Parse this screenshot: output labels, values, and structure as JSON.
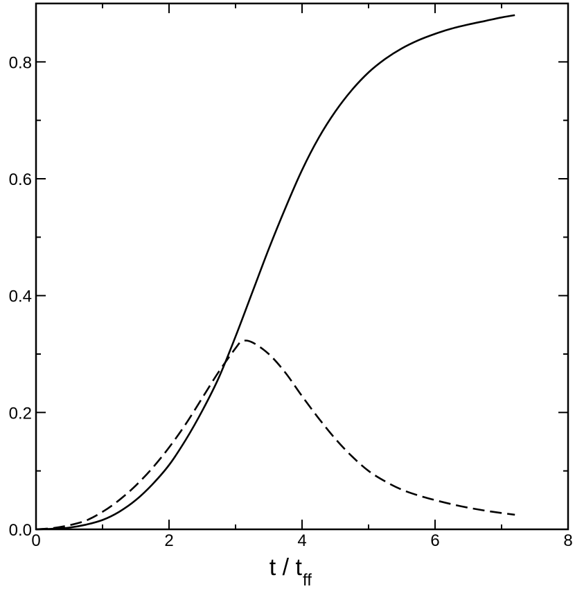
{
  "chart_data": {
    "type": "line",
    "title": "",
    "xlabel": "t / t",
    "xlabel_subscript": "ff",
    "ylabel": "",
    "xlim": [
      0,
      8
    ],
    "ylim": [
      0,
      0.9
    ],
    "x_ticks": [
      "0",
      "2",
      "4",
      "6",
      "8"
    ],
    "y_ticks": [
      "0.0",
      "0.2",
      "0.4",
      "0.6",
      "0.8"
    ],
    "grid": false,
    "legend": "none",
    "series": [
      {
        "style": "solid",
        "color": "#000000",
        "x": [
          0,
          0.25,
          0.5,
          0.75,
          1.0,
          1.25,
          1.5,
          1.75,
          2.0,
          2.25,
          2.5,
          2.75,
          3.0,
          3.25,
          3.5,
          3.75,
          4.0,
          4.25,
          4.5,
          4.75,
          5.0,
          5.25,
          5.5,
          5.75,
          6.0,
          6.25,
          6.5,
          6.75,
          7.0,
          7.2
        ],
        "y": [
          0.0,
          0.001,
          0.003,
          0.008,
          0.016,
          0.03,
          0.05,
          0.077,
          0.11,
          0.153,
          0.203,
          0.26,
          0.33,
          0.405,
          0.48,
          0.55,
          0.615,
          0.67,
          0.715,
          0.752,
          0.782,
          0.805,
          0.823,
          0.837,
          0.848,
          0.857,
          0.864,
          0.87,
          0.876,
          0.88
        ]
      },
      {
        "style": "dashed",
        "color": "#000000",
        "x": [
          0,
          0.25,
          0.5,
          0.75,
          1.0,
          1.25,
          1.5,
          1.75,
          2.0,
          2.25,
          2.5,
          2.75,
          3.0,
          3.1,
          3.25,
          3.5,
          3.75,
          4.0,
          4.25,
          4.5,
          4.75,
          5.0,
          5.25,
          5.5,
          5.75,
          6.0,
          6.25,
          6.5,
          6.75,
          7.0,
          7.2
        ],
        "y": [
          0.0,
          0.002,
          0.007,
          0.015,
          0.03,
          0.05,
          0.075,
          0.105,
          0.14,
          0.18,
          0.225,
          0.27,
          0.31,
          0.322,
          0.32,
          0.3,
          0.268,
          0.228,
          0.19,
          0.155,
          0.125,
          0.1,
          0.082,
          0.068,
          0.058,
          0.05,
          0.043,
          0.037,
          0.032,
          0.028,
          0.025
        ]
      }
    ]
  }
}
